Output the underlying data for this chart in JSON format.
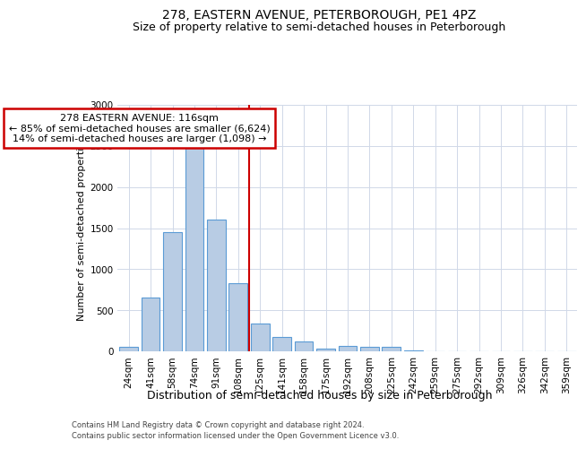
{
  "title": "278, EASTERN AVENUE, PETERBOROUGH, PE1 4PZ",
  "subtitle": "Size of property relative to semi-detached houses in Peterborough",
  "xlabel": "Distribution of semi-detached houses by size in Peterborough",
  "ylabel": "Number of semi-detached properties",
  "categories": [
    "24sqm",
    "41sqm",
    "58sqm",
    "74sqm",
    "91sqm",
    "108sqm",
    "125sqm",
    "141sqm",
    "158sqm",
    "175sqm",
    "192sqm",
    "208sqm",
    "225sqm",
    "242sqm",
    "259sqm",
    "275sqm",
    "292sqm",
    "309sqm",
    "326sqm",
    "342sqm",
    "359sqm"
  ],
  "values": [
    50,
    650,
    1450,
    2500,
    1600,
    830,
    340,
    175,
    120,
    30,
    70,
    50,
    50,
    10,
    5,
    5,
    3,
    2,
    2,
    2,
    2
  ],
  "bar_color": "#b8cce4",
  "bar_edge_color": "#5b9bd5",
  "bar_width": 0.85,
  "vline_x": 6.0,
  "annotation_text": "278 EASTERN AVENUE: 116sqm\n← 85% of semi-detached houses are smaller (6,624)\n14% of semi-detached houses are larger (1,098) →",
  "annotation_box_color": "#ffffff",
  "annotation_box_edge": "#cc0000",
  "vline_color": "#cc0000",
  "footnote1": "Contains HM Land Registry data © Crown copyright and database right 2024.",
  "footnote2": "Contains public sector information licensed under the Open Government Licence v3.0.",
  "title_fontsize": 10,
  "subtitle_fontsize": 9,
  "ylabel_fontsize": 8,
  "xlabel_fontsize": 9,
  "tick_fontsize": 7.5,
  "annot_fontsize": 8,
  "ylim": [
    0,
    3000
  ],
  "yticks": [
    0,
    500,
    1000,
    1500,
    2000,
    2500,
    3000
  ],
  "background_color": "#ffffff",
  "grid_color": "#d0d8e8"
}
